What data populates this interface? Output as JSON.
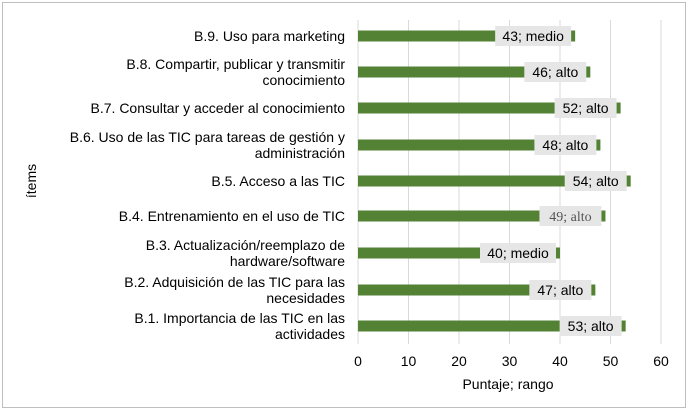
{
  "chart_data": {
    "type": "bar",
    "orientation": "horizontal",
    "categories": [
      [
        "B.9. Uso para marketing"
      ],
      [
        "B.8. Compartir, publicar y transmitir",
        "conocimiento"
      ],
      [
        "B.7. Consultar y acceder al conocimiento"
      ],
      [
        "B.6. Uso de las TIC para tareas de gestión y",
        "administración"
      ],
      [
        "B.5. Acceso a las TIC"
      ],
      [
        "B.4. Entrenamiento en el uso de TIC"
      ],
      [
        "B.3. Actualización/reemplazo de",
        "hardware/software"
      ],
      [
        "B.2. Adquisición de las TIC para las",
        "necesidades"
      ],
      [
        "B.1. Importancia de las TIC en las",
        "actividades"
      ]
    ],
    "values": [
      43,
      46,
      52,
      48,
      54,
      49,
      40,
      47,
      53
    ],
    "data_labels": [
      "43; medio",
      "46; alto",
      "52; alto",
      "48; alto",
      "54; alto",
      "49; alto",
      "40; medio",
      "47; alto",
      "53; alto"
    ],
    "xlabel": "Puntaje; rango",
    "ylabel": "ítems",
    "xlim": [
      0,
      60
    ],
    "xticks": [
      "0",
      "10",
      "20",
      "30",
      "40",
      "50",
      "60"
    ],
    "grid": true,
    "bar_color": "#548235",
    "label_bg_color": "#e7e6e6"
  }
}
